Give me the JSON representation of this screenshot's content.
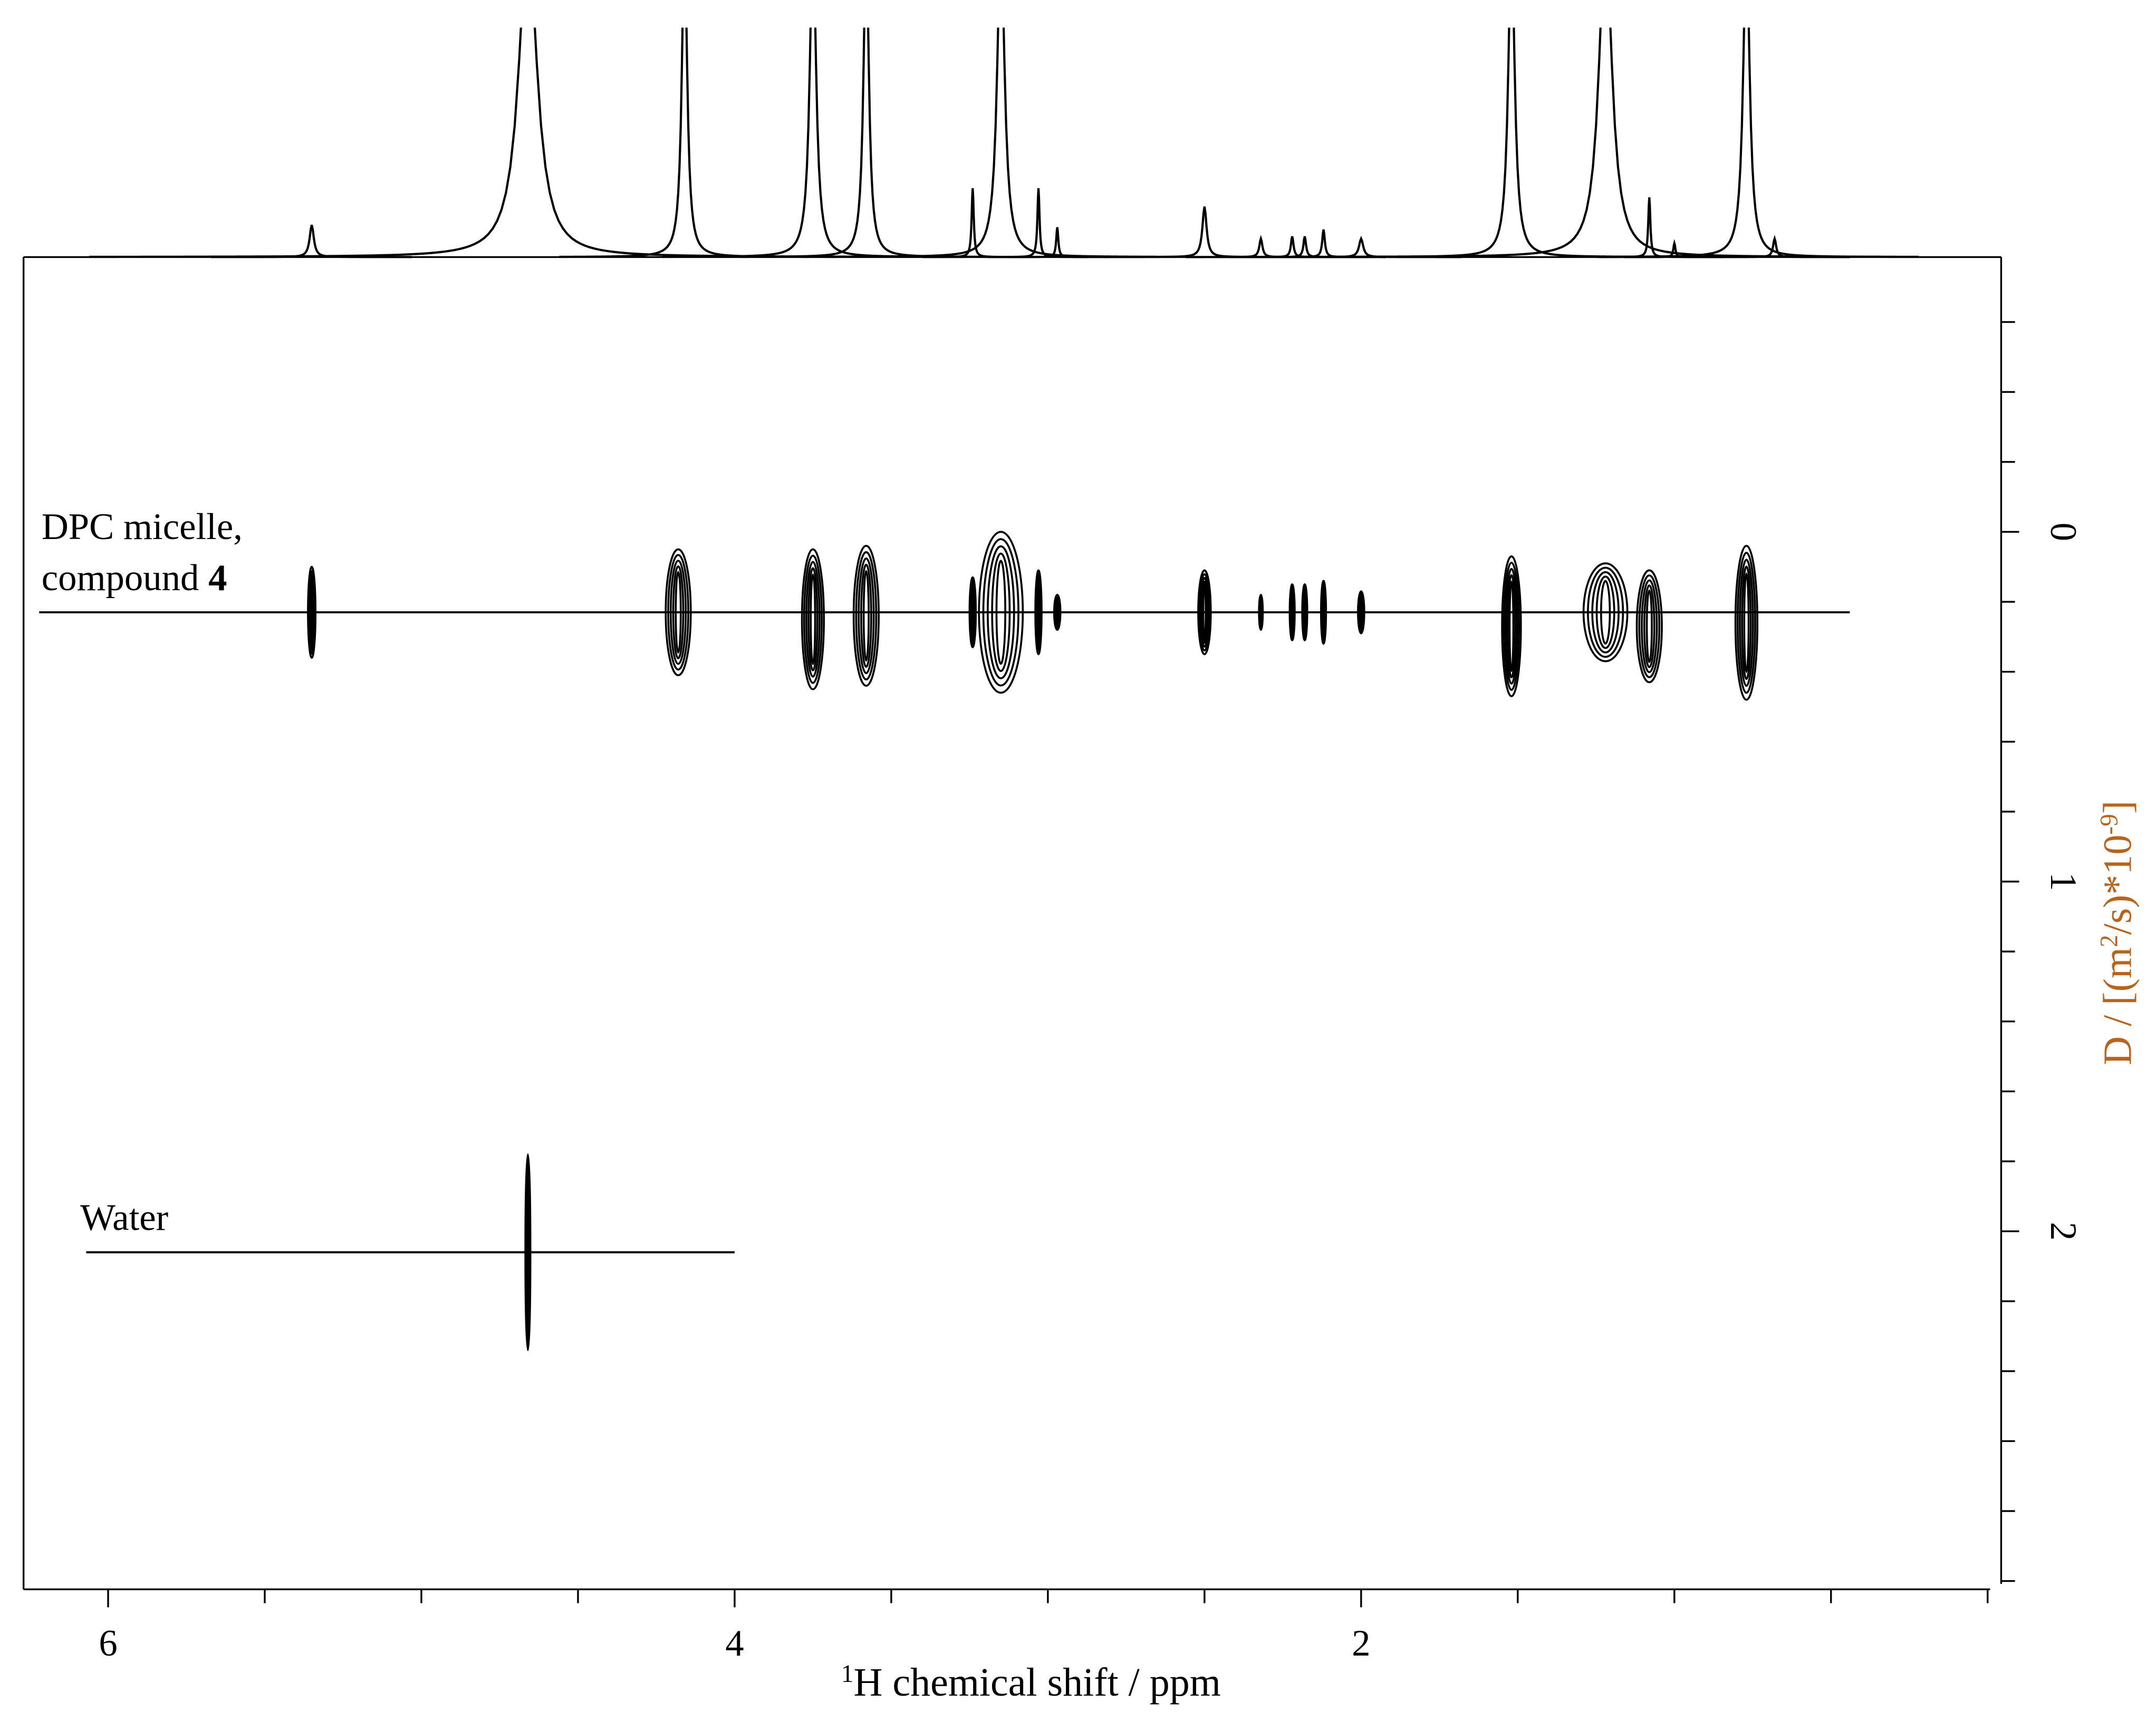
{
  "chart_data": {
    "type": "dosy",
    "x_label": {
      "sup": "1",
      "text": "H chemical shift / ppm"
    },
    "y_label": [
      {
        "text": "D / [(m"
      },
      {
        "text": "2",
        "sup": true
      },
      {
        "text": "/s)*10"
      },
      {
        "text": "-9",
        "sup": true
      },
      {
        "text": "]"
      }
    ],
    "y_label_color": "#b8641c",
    "xlim": [
      6.27,
      -0.03
    ],
    "xticks": [
      6,
      4,
      2
    ],
    "xminorticks": [
      5.5,
      5,
      4.5,
      3.5,
      3,
      2.5,
      1.5,
      1,
      0.5,
      0
    ],
    "ylim": [
      -0.77,
      3.01
    ],
    "yticks": [
      0,
      1,
      2
    ],
    "yminorticks": [
      -0.6,
      -0.4,
      -0.2,
      0.2,
      0.4,
      0.6,
      0.8,
      1.2,
      1.4,
      1.6,
      1.8,
      2.2,
      2.4,
      2.6,
      2.8,
      3.0
    ],
    "annotations": {
      "micelle_line1": "DPC micelle,",
      "micelle_line2": "compound ",
      "micelle_bold": "4",
      "water": "Water"
    },
    "reference_lines": [
      {
        "d": 0.23,
        "from": 6.22,
        "to": 0.44
      },
      {
        "d": 2.06,
        "from": 6.07,
        "to": 4.0
      }
    ],
    "spectrum": {
      "ylim": [
        0,
        100
      ],
      "peaks": [
        {
          "ppm": 5.35,
          "height": 14,
          "width": 0.008
        },
        {
          "ppm": 4.66,
          "height": 140,
          "width": 0.035
        },
        {
          "ppm": 4.16,
          "height": 140,
          "width": 0.01
        },
        {
          "ppm": 3.75,
          "height": 140,
          "width": 0.012
        },
        {
          "ppm": 3.58,
          "height": 140,
          "width": 0.01
        },
        {
          "ppm": 3.24,
          "height": 30,
          "width": 0.004
        },
        {
          "ppm": 3.15,
          "height": 140,
          "width": 0.014
        },
        {
          "ppm": 3.03,
          "height": 30,
          "width": 0.004
        },
        {
          "ppm": 2.97,
          "height": 13,
          "width": 0.004
        },
        {
          "ppm": 2.5,
          "height": 22,
          "width": 0.008
        },
        {
          "ppm": 2.32,
          "height": 8,
          "width": 0.006
        },
        {
          "ppm": 2.22,
          "height": 9,
          "width": 0.005
        },
        {
          "ppm": 2.18,
          "height": 9,
          "width": 0.005
        },
        {
          "ppm": 2.12,
          "height": 12,
          "width": 0.005
        },
        {
          "ppm": 2.0,
          "height": 8,
          "width": 0.008
        },
        {
          "ppm": 1.52,
          "height": 140,
          "width": 0.012
        },
        {
          "ppm": 1.22,
          "height": 140,
          "width": 0.025
        },
        {
          "ppm": 1.08,
          "height": 26,
          "width": 0.004
        },
        {
          "ppm": 1.0,
          "height": 6,
          "width": 0.004
        },
        {
          "ppm": 0.77,
          "height": 140,
          "width": 0.012
        },
        {
          "ppm": 0.68,
          "height": 8,
          "width": 0.006
        }
      ]
    },
    "signals": [
      {
        "ppm": 5.35,
        "d": 0.23,
        "dspan": 0.13,
        "width": 0.012
      },
      {
        "ppm": 4.18,
        "d": 0.23,
        "dspan": 0.18,
        "width": 0.04
      },
      {
        "ppm": 3.75,
        "d": 0.25,
        "dspan": 0.2,
        "width": 0.035
      },
      {
        "ppm": 3.58,
        "d": 0.24,
        "dspan": 0.2,
        "width": 0.04
      },
      {
        "ppm": 3.24,
        "d": 0.23,
        "dspan": 0.1,
        "width": 0.01
      },
      {
        "ppm": 3.15,
        "d": 0.23,
        "dspan": 0.23,
        "width": 0.07
      },
      {
        "ppm": 3.03,
        "d": 0.23,
        "dspan": 0.12,
        "width": 0.01
      },
      {
        "ppm": 2.97,
        "d": 0.23,
        "dspan": 0.05,
        "width": 0.01
      },
      {
        "ppm": 2.5,
        "d": 0.23,
        "dspan": 0.12,
        "width": 0.02
      },
      {
        "ppm": 2.32,
        "d": 0.23,
        "dspan": 0.05,
        "width": 0.006
      },
      {
        "ppm": 2.22,
        "d": 0.23,
        "dspan": 0.08,
        "width": 0.008
      },
      {
        "ppm": 2.18,
        "d": 0.23,
        "dspan": 0.08,
        "width": 0.008
      },
      {
        "ppm": 2.12,
        "d": 0.23,
        "dspan": 0.09,
        "width": 0.008
      },
      {
        "ppm": 2.0,
        "d": 0.23,
        "dspan": 0.06,
        "width": 0.01
      },
      {
        "ppm": 1.52,
        "d": 0.27,
        "dspan": 0.2,
        "width": 0.03
      },
      {
        "ppm": 1.22,
        "d": 0.23,
        "dspan": 0.14,
        "width": 0.07
      },
      {
        "ppm": 1.08,
        "d": 0.27,
        "dspan": 0.16,
        "width": 0.04
      },
      {
        "ppm": 0.77,
        "d": 0.26,
        "dspan": 0.22,
        "width": 0.035
      },
      {
        "ppm": 4.66,
        "d": 2.06,
        "dspan": 0.28,
        "width": 0.008
      }
    ]
  }
}
